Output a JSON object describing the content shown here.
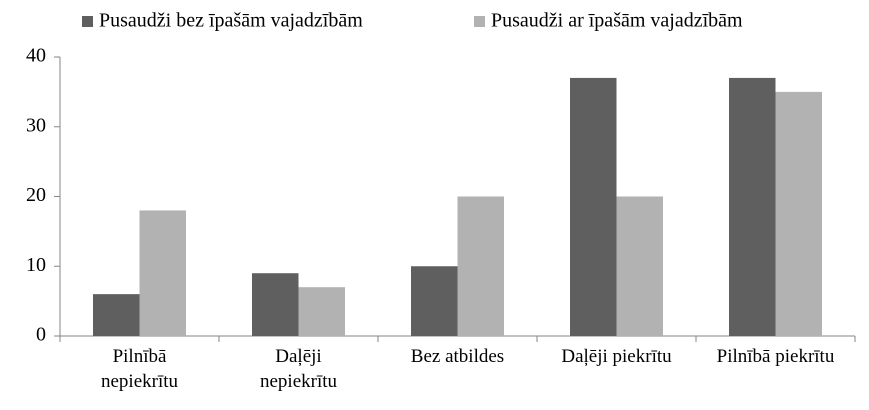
{
  "chart_data": {
    "type": "bar",
    "categories": [
      "Pilnībā nepiekrītu",
      "Daļēji nepiekrītu",
      "Bez atbildes",
      "Daļēji piekrītu",
      "Pilnībā piekrītu"
    ],
    "series": [
      {
        "name": "Pusaudži bez īpašām vajadzībām",
        "color": "#5f5f5f",
        "values": [
          6,
          9,
          10,
          37,
          37
        ]
      },
      {
        "name": "Pusaudži ar īpašām vajadzībām",
        "color": "#b2b2b2",
        "values": [
          18,
          7,
          20,
          20,
          35
        ]
      }
    ],
    "ylim": [
      0,
      40
    ],
    "yticks": [
      0,
      10,
      20,
      30,
      40
    ],
    "grid": false,
    "legend": "top"
  }
}
